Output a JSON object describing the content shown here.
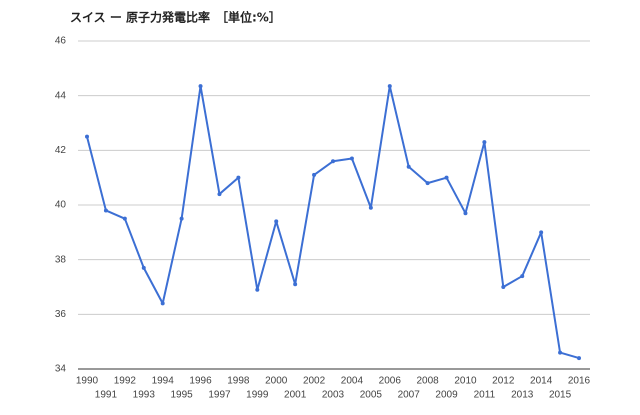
{
  "chart_data": {
    "type": "line",
    "title": "スイス ー 原子力発電比率　［単位:%］",
    "categories": [
      "1990",
      "1991",
      "1992",
      "1993",
      "1994",
      "1995",
      "1996",
      "1997",
      "1998",
      "1999",
      "2000",
      "2001",
      "2002",
      "2003",
      "2004",
      "2005",
      "2006",
      "2007",
      "2008",
      "2009",
      "2010",
      "2011",
      "2012",
      "2013",
      "2014",
      "2015",
      "2016"
    ],
    "series": [
      {
        "color": "#3c6fd4",
        "values": [
          42.5,
          39.8,
          39.5,
          37.7,
          36.4,
          39.5,
          44.35,
          40.4,
          41.0,
          36.9,
          39.4,
          37.1,
          41.1,
          41.6,
          41.7,
          39.9,
          44.35,
          41.4,
          40.8,
          41.0,
          39.7,
          42.3,
          37.0,
          37.4,
          39.0,
          34.6,
          34.4
        ]
      }
    ],
    "ylim": [
      34,
      46
    ],
    "yticks": [
      34,
      36,
      38,
      40,
      42,
      44,
      46
    ],
    "grid": true
  }
}
